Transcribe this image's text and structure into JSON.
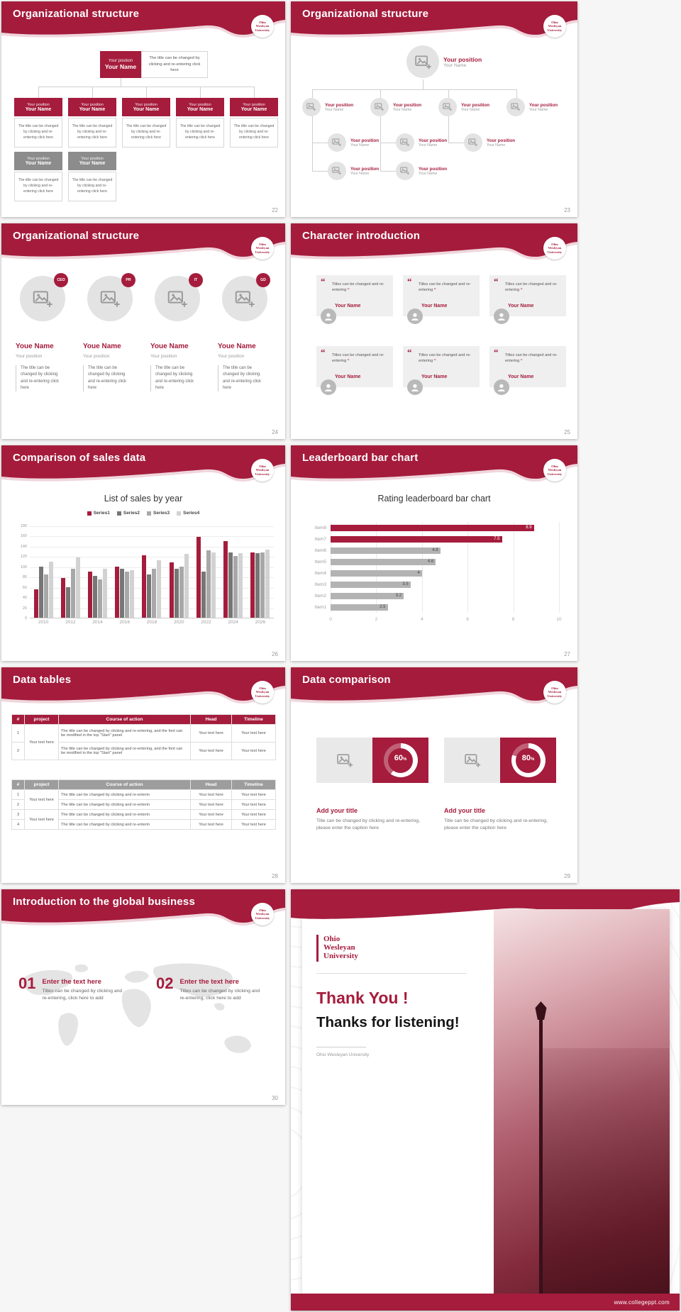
{
  "theme": {
    "accent": "#A51C3C",
    "accent_dark": "#8C1530",
    "gray_box": "#8C8C8C",
    "bar_gray": "#B3B3B3"
  },
  "logo": {
    "lines": [
      "Ohio",
      "Wesleyan",
      "University"
    ]
  },
  "shared": {
    "percent_sign": "%"
  },
  "chart_data": [
    {
      "type": "bar",
      "title": "List of sales by year",
      "categories": [
        "2010",
        "2012",
        "2014",
        "2016",
        "2018",
        "2020",
        "2022",
        "2024",
        "2026"
      ],
      "series": [
        {
          "name": "Series1",
          "color": "#A51C3C",
          "values": [
            55,
            78,
            90,
            100,
            122,
            108,
            158,
            150,
            128
          ]
        },
        {
          "name": "Series2",
          "color": "#767676",
          "values": [
            100,
            60,
            82,
            95,
            85,
            96,
            90,
            128,
            126
          ]
        },
        {
          "name": "Series3",
          "color": "#A8A8A8",
          "values": [
            85,
            95,
            75,
            90,
            95,
            100,
            132,
            120,
            128
          ]
        },
        {
          "name": "Series4",
          "color": "#D2D2D2",
          "values": [
            110,
            118,
            95,
            93,
            112,
            124,
            128,
            126,
            133
          ]
        }
      ],
      "ylim": [
        0,
        180
      ],
      "ytick_step": 20,
      "xlabel": "",
      "ylabel": "",
      "legend_position": "top",
      "grid": true
    },
    {
      "type": "bar-horizontal",
      "title": "Rating leaderboard bar chart",
      "categories": [
        "Item8",
        "Item7",
        "Item6",
        "Item5",
        "Item4",
        "Item3",
        "Item2",
        "Item1"
      ],
      "values": [
        8.9,
        7.5,
        4.8,
        4.6,
        4,
        3.5,
        3.2,
        2.5
      ],
      "bar_colors": [
        "#A51C3C",
        "#A51C3C",
        "#B3B3B3",
        "#B3B3B3",
        "#B3B3B3",
        "#B3B3B3",
        "#B3B3B3",
        "#B3B3B3"
      ],
      "xlim": [
        0,
        10
      ],
      "xticks": [
        0,
        2,
        4,
        6,
        8,
        10
      ],
      "grid": true
    }
  ],
  "slides": {
    "s22": {
      "title": "Organizational structure",
      "page": "22",
      "root": {
        "position": "Your position",
        "name": "Your Name"
      },
      "root_note": "The title can be changed by clicking and re-entering click here",
      "children": [
        {
          "variant": "accent",
          "position": "Your position",
          "name": "Your Name",
          "note": "The title can be changed by clicking and re-entering click here"
        },
        {
          "variant": "accent",
          "position": "Your position",
          "name": "Your Name",
          "note": "The title can be changed by clicking and re-entering click here"
        },
        {
          "variant": "accent",
          "position": "Your position",
          "name": "Your Name",
          "note": "The title can be changed by clicking and re-entering click here"
        },
        {
          "variant": "accent",
          "position": "Your position",
          "name": "Your Name",
          "note": "The title can be changed by clicking and re-entering click here"
        },
        {
          "variant": "accent",
          "position": "Your position",
          "name": "Your Name",
          "note": "The title can be changed by clicking and re-entering click here"
        },
        {
          "variant": "gray",
          "position": "Your position",
          "name": "Your Name",
          "note": "The title can be changed by clicking and re-entering click here"
        },
        {
          "variant": "gray",
          "position": "Your position",
          "name": "Your Name",
          "note": "The title can be changed by clicking and re-entering click here"
        }
      ]
    },
    "s23": {
      "title": "Organizational structure",
      "page": "23",
      "top": {
        "position": "Your position",
        "name": "Your Name"
      },
      "rows": [
        [
          {
            "position": "Your position",
            "name": "Your Name"
          },
          {
            "position": "Your position",
            "name": "Your Name"
          },
          {
            "position": "Your position",
            "name": "Your Name"
          },
          {
            "position": "Your position",
            "name": "Your Name"
          }
        ],
        [
          {
            "position": "Your position",
            "name": "Your Name"
          },
          {
            "position": "Your position",
            "name": "Your Name"
          },
          {
            "position": "Your position",
            "name": "Your Name"
          }
        ],
        [
          {
            "position": "Your position",
            "name": "Your Name"
          },
          {
            "position": "Your position",
            "name": "Your Name"
          }
        ]
      ]
    },
    "s24": {
      "title": "Organizational structure",
      "page": "24",
      "members": [
        {
          "badge": "CEO",
          "name": "Youe Name",
          "position": "Your position",
          "note": "The title can be changed by clicking and re-entering click here"
        },
        {
          "badge": "PR",
          "name": "Youe Name",
          "position": "Your position",
          "note": "The title can be changed by clicking and re-entering click here"
        },
        {
          "badge": "IT",
          "name": "Youe Name",
          "position": "Your position",
          "note": "The title can be changed by clicking and re-entering click here"
        },
        {
          "badge": "GD",
          "name": "Youe Name",
          "position": "Your position",
          "note": "The title can be changed by clicking and re-entering click here"
        }
      ]
    },
    "s25": {
      "title": "Character introduction",
      "page": "25",
      "quote_open": "“",
      "quote_close": "”",
      "cards": [
        {
          "quote": "Titles can be changed and re-entering",
          "name": "Your Name"
        },
        {
          "quote": "Titles can be changed and re-entering",
          "name": "Your Name"
        },
        {
          "quote": "Titles can be changed and re-entering",
          "name": "Your Name"
        },
        {
          "quote": "Titles can be changed and re-entering",
          "name": "Your Name"
        },
        {
          "quote": "Titles can be changed and re-entering",
          "name": "Your Name"
        },
        {
          "quote": "Titles can be changed and re-entering",
          "name": "Your Name"
        }
      ]
    },
    "s26": {
      "title": "Comparison of sales data",
      "page": "26"
    },
    "s27": {
      "title": "Leaderboard bar chart",
      "page": "27"
    },
    "s28": {
      "title": "Data tables",
      "page": "28",
      "table1": {
        "headers": [
          "#",
          "project",
          "Course of action",
          "Head",
          "Timeline"
        ],
        "rows": [
          [
            "1",
            "Your text here",
            "The title can be changed by clicking and re-entering, and the font can be modified in the top \"Start\" panel",
            "Your text here",
            "Your text here"
          ],
          [
            "2",
            "",
            "The title can be changed by clicking and re-entering, and the font can be modified in the top \"Start\" panel",
            "Your text here",
            "Your text here"
          ]
        ]
      },
      "table2": {
        "headers": [
          "#",
          "project",
          "Course of action",
          "Head",
          "Timeline"
        ],
        "rows": [
          [
            "1",
            "Your text here",
            "The title can be changed by clicking and re-enterin",
            "Your text here",
            "Your text here"
          ],
          [
            "2",
            "",
            "The title can be changed by clicking and re-enterin",
            "Your text here",
            "Your text here"
          ],
          [
            "3",
            "Your text here",
            "The title can be changed by clicking and re-enterin",
            "Your text here",
            "Your text here"
          ],
          [
            "4",
            "",
            "The title can be changed by clicking and re-enterin",
            "Your text here",
            "Your text here"
          ]
        ]
      }
    },
    "s29": {
      "title": "Data comparison",
      "page": "29",
      "items": [
        {
          "percent": 60,
          "title": "Add your title",
          "caption": "Title can be changed by clicking and re-entering, please enter the caption here"
        },
        {
          "percent": 80,
          "title": "Add your title",
          "caption": "Title can be changed by clicking and re-entering, please enter the caption here"
        }
      ]
    },
    "s30": {
      "title": "Introduction to the global business",
      "page": "30",
      "items": [
        {
          "num": "01",
          "title": "Enter the text here",
          "note": "Titles can be changed by clicking and re-entering, click here to add"
        },
        {
          "num": "02",
          "title": "Enter the text here",
          "note": "Titles can be changed by clicking and re-entering, click here to add"
        }
      ]
    },
    "s31": {
      "logo_lines": [
        "Ohio",
        "Wesleyan",
        "University"
      ],
      "thanks_line1": "Thank You !",
      "thanks_line2": "Thanks for listening!",
      "subtitle": "Ohio Wesleyan University",
      "url": "www.collegeppt.com"
    }
  }
}
